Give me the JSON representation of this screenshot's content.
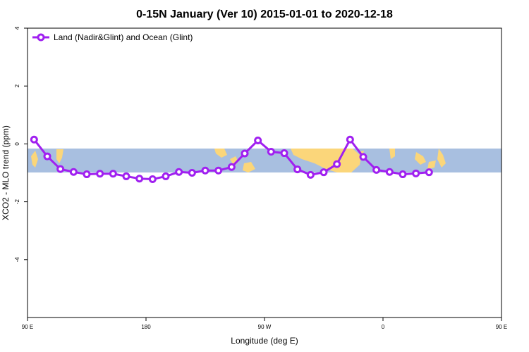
{
  "chart_data": {
    "type": "line",
    "title": "0-15N January (Ver 10)   2015-01-01 to 2020-12-18",
    "xlabel": "Longitude (deg E)",
    "ylabel": "XCO2 - MLO trend (ppm)",
    "xlim": [
      90,
      450
    ],
    "ylim": [
      -6,
      4
    ],
    "x_ticks": [
      {
        "value": 90,
        "label": "90 E"
      },
      {
        "value": 180,
        "label": "180"
      },
      {
        "value": 270,
        "label": "90 W"
      },
      {
        "value": 360,
        "label": "0"
      },
      {
        "value": 450,
        "label": "90 E"
      },
      {
        "value": 540,
        "label": "180"
      }
    ],
    "y_ticks": [
      {
        "value": 4,
        "label": "4"
      },
      {
        "value": 2,
        "label": "2"
      },
      {
        "value": 0,
        "label": "0"
      },
      {
        "value": -2,
        "label": "-2"
      },
      {
        "value": -4,
        "label": "-4"
      }
    ],
    "legend": {
      "placement": "top-left"
    },
    "grid": false,
    "map_background": {
      "description": "world map strip 0-15N",
      "ocean_color": "#a8bfe0",
      "land_color": "#fbd67a"
    },
    "series": [
      {
        "name": "Land (Nadir&Glint) and Ocean (Glint)",
        "color": "#a020f0",
        "x": [
          95,
          105,
          115,
          125,
          135,
          145,
          155,
          165,
          175,
          185,
          195,
          205,
          215,
          225,
          235,
          245,
          255,
          265,
          275,
          285,
          295,
          305,
          315,
          325,
          335,
          345,
          355,
          365,
          375,
          385,
          395
        ],
        "values": [
          0.15,
          -0.43,
          -0.87,
          -0.97,
          -1.05,
          -1.03,
          -1.03,
          -1.12,
          -1.2,
          -1.22,
          -1.12,
          -0.97,
          -1.0,
          -0.92,
          -0.92,
          -0.8,
          -0.33,
          0.12,
          -0.27,
          -0.32,
          -0.88,
          -1.07,
          -0.98,
          -0.7,
          0.15,
          -0.45,
          -0.9,
          -0.97,
          -1.05,
          -1.02,
          -0.98
        ]
      }
    ]
  }
}
